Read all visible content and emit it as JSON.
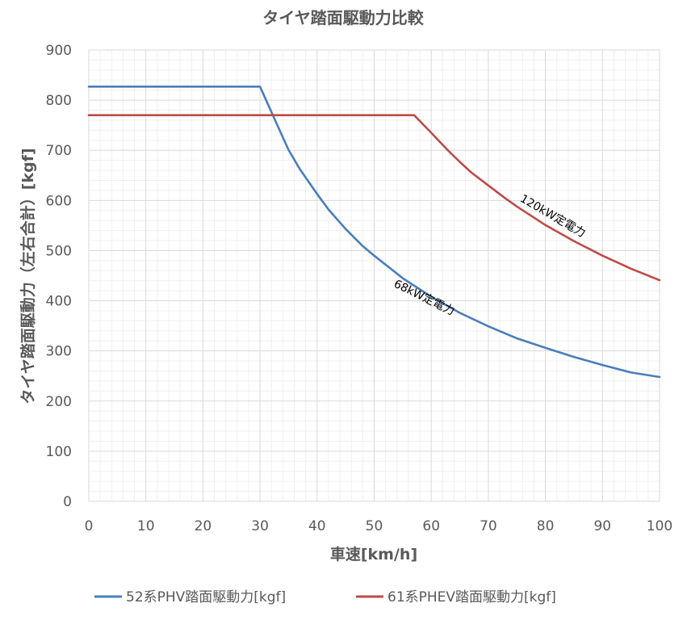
{
  "chart_data": {
    "type": "line",
    "title": "タイヤ踏面駆動力比較",
    "xlabel": "車速[km/h]",
    "ylabel": "タイヤ踏面駆動力（左右合計）[kgf]",
    "xlim": [
      0,
      100
    ],
    "ylim": [
      0,
      900
    ],
    "xticks": [
      "0",
      "10",
      "20",
      "30",
      "40",
      "50",
      "60",
      "70",
      "80",
      "90",
      "100"
    ],
    "yticks": [
      "0",
      "100",
      "200",
      "300",
      "400",
      "500",
      "600",
      "700",
      "800",
      "900"
    ],
    "grid": true,
    "legend_position": "bottom",
    "series": [
      {
        "name": "52系PHV踏面駆動力[kgf]",
        "color": "#4a7ebb",
        "points": [
          [
            0,
            827
          ],
          [
            30,
            827
          ],
          [
            33,
            751
          ],
          [
            35,
            701
          ],
          [
            37,
            662
          ],
          [
            40,
            613
          ],
          [
            42,
            582
          ],
          [
            45,
            543
          ],
          [
            48,
            509
          ],
          [
            50,
            490
          ],
          [
            55,
            445
          ],
          [
            60,
            408
          ],
          [
            65,
            376
          ],
          [
            70,
            349
          ],
          [
            75,
            325
          ],
          [
            80,
            306
          ],
          [
            85,
            288
          ],
          [
            90,
            272
          ],
          [
            95,
            257
          ],
          [
            100,
            248
          ]
        ]
      },
      {
        "name": "61系PHEV踏面駆動力[kgf]",
        "color": "#be4b48",
        "points": [
          [
            0,
            770
          ],
          [
            57,
            770
          ],
          [
            60,
            735
          ],
          [
            63,
            699
          ],
          [
            65,
            677
          ],
          [
            67,
            656
          ],
          [
            70,
            630
          ],
          [
            73,
            604
          ],
          [
            75,
            588
          ],
          [
            80,
            551
          ],
          [
            85,
            519
          ],
          [
            90,
            490
          ],
          [
            95,
            464
          ],
          [
            100,
            441
          ]
        ]
      }
    ],
    "annotations": [
      {
        "text": "120kW定電力",
        "x": 81,
        "y": 563,
        "angle": 30
      },
      {
        "text": "68kW定電力",
        "x": 58.5,
        "y": 400,
        "angle": 26
      }
    ]
  }
}
